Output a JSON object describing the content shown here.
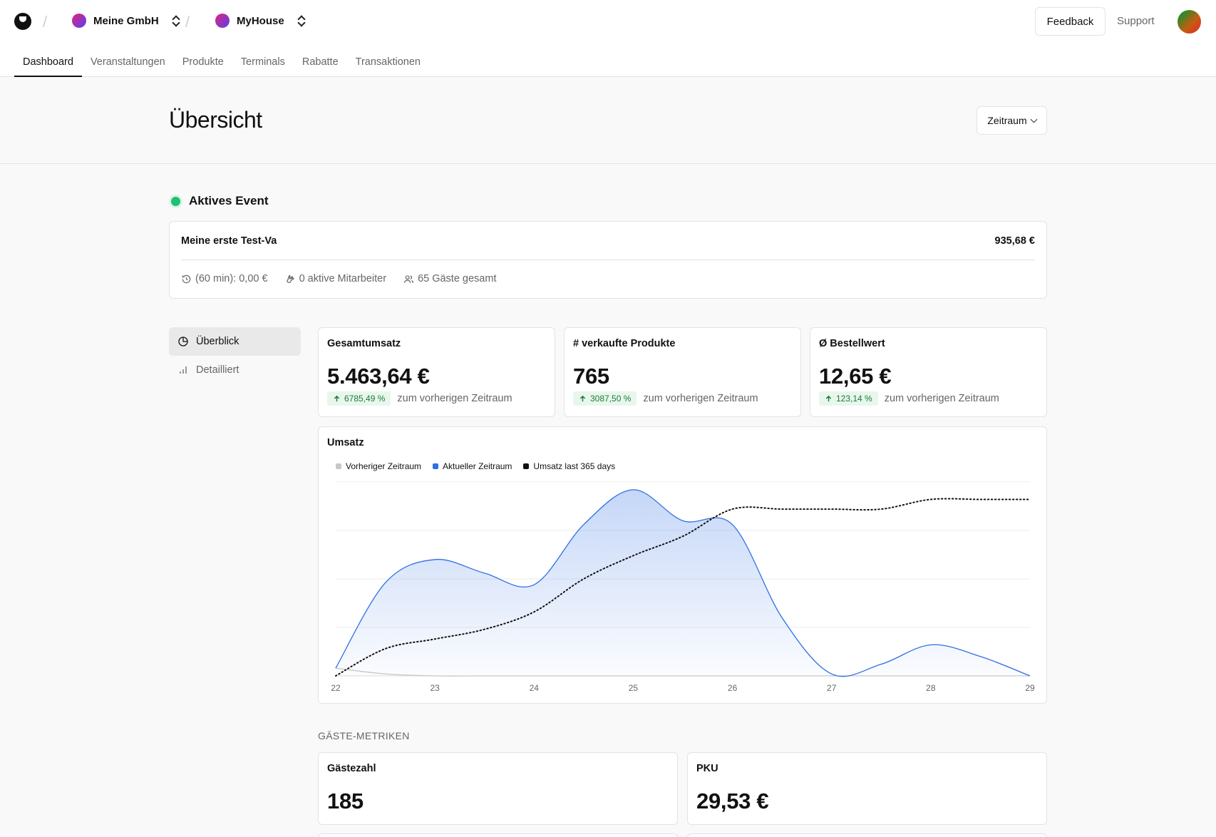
{
  "header": {
    "org": "Meine GmbH",
    "project": "MyHouse",
    "feedback_label": "Feedback",
    "support_label": "Support"
  },
  "tabs": [
    "Dashboard",
    "Veranstaltungen",
    "Produkte",
    "Terminals",
    "Rabatte",
    "Transaktionen"
  ],
  "page": {
    "title": "Übersicht",
    "period_label": "Zeitraum"
  },
  "active_event": {
    "heading": "Aktives Event",
    "name": "Meine erste Test-Va",
    "amount": "935,68 €",
    "meta": {
      "last_60": "(60 min): 0,00 €",
      "staff": "0 aktive Mitarbeiter",
      "guests": "65 Gäste gesamt"
    }
  },
  "sidenav": [
    "Überblick",
    "Detailliert"
  ],
  "stats": [
    {
      "label": "Gesamtumsatz",
      "value": "5.463,64 €",
      "delta": "6785,49 %",
      "compare": "zum vorherigen Zeitraum"
    },
    {
      "label": "# verkaufte Produkte",
      "value": "765",
      "delta": "3087,50 %",
      "compare": "zum vorherigen Zeitraum"
    },
    {
      "label": "Ø Bestellwert",
      "value": "12,65 €",
      "delta": "123,14 %",
      "compare": "zum vorherigen Zeitraum"
    }
  ],
  "chart": {
    "title": "Umsatz",
    "legend": [
      "Vorheriger Zeitraum",
      "Aktueller Zeitraum",
      "Umsatz last 365 days"
    ]
  },
  "chart_data": {
    "type": "area",
    "title": "Umsatz",
    "x": [
      22,
      22.5,
      23,
      23.5,
      24,
      24.5,
      25,
      25.5,
      26,
      26.5,
      27,
      27.5,
      28,
      28.5,
      29
    ],
    "series": [
      {
        "name": "Vorheriger Zeitraum",
        "color": "#c8c8c8",
        "values": [
          0.04,
          0.01,
          0,
          0,
          0,
          0,
          0,
          0,
          0,
          0,
          0,
          0,
          0,
          0,
          0
        ]
      },
      {
        "name": "Aktueller Zeitraum",
        "color": "#2f6fe4",
        "values": [
          0.04,
          0.48,
          0.6,
          0.53,
          0.47,
          0.78,
          0.96,
          0.8,
          0.78,
          0.3,
          0.01,
          0.06,
          0.16,
          0.1,
          0
        ]
      },
      {
        "name": "Umsatz last 365 days",
        "color": "#111111",
        "values": [
          0,
          0.14,
          0.19,
          0.24,
          0.33,
          0.5,
          0.62,
          0.72,
          0.86,
          0.86,
          0.86,
          0.86,
          0.91,
          0.91,
          0.91
        ]
      }
    ],
    "xlim": [
      22,
      29
    ],
    "ylim": [
      0,
      1
    ],
    "grid": true,
    "legend_position": "top-left",
    "xticks": [
      "22",
      "23",
      "24",
      "25",
      "26",
      "27",
      "28",
      "29"
    ]
  },
  "guest_metrics": {
    "section_label": "GÄSTE-METRIKEN",
    "cards": [
      {
        "label": "Gästezahl",
        "value": "185"
      },
      {
        "label": "PKU",
        "value": "29,53 €"
      }
    ]
  }
}
